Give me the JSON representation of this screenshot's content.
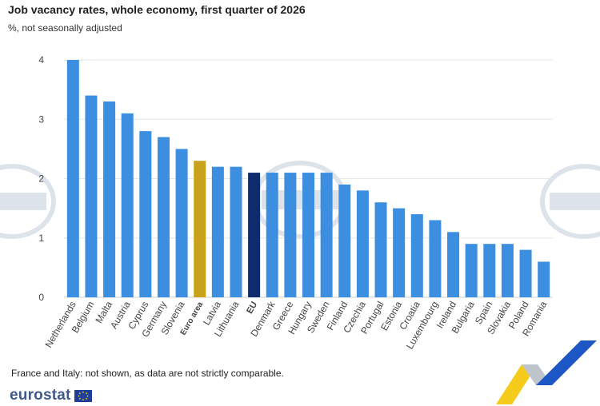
{
  "header": {
    "title": "Job vacancy rates, whole economy, first quarter of 2026",
    "subtitle": "%, not seasonally adjusted"
  },
  "footnote": "France and Italy: not shown, as data are not strictly comparable.",
  "logo": {
    "text": "eurostat"
  },
  "colors": {
    "default": "#3b8ee0",
    "euro_area": "#c9a11a",
    "eu": "#0e2b6e",
    "grid": "#e6e6e6",
    "axis_text": "#444444",
    "watermark": "#9fb2c8"
  },
  "chart_data": {
    "type": "bar",
    "title": "Job vacancy rates, whole economy, first quarter of 2026",
    "subtitle": "%, not seasonally adjusted",
    "categories": [
      "Netherlands",
      "Belgium",
      "Malta",
      "Austria",
      "Cyprus",
      "Germany",
      "Slovenia",
      "Euro area",
      "Latvia",
      "Lithuania",
      "EU",
      "Denmark",
      "Greece",
      "Hungary",
      "Sweden",
      "Finland",
      "Czechia",
      "Portugal",
      "Estonia",
      "Croatia",
      "Luxembourg",
      "Ireland",
      "Bulgaria",
      "Spain",
      "Slovakia",
      "Poland",
      "Romania"
    ],
    "values": [
      4.0,
      3.4,
      3.3,
      3.1,
      2.8,
      2.7,
      2.5,
      2.3,
      2.2,
      2.2,
      2.1,
      2.1,
      2.1,
      2.1,
      2.1,
      1.9,
      1.8,
      1.6,
      1.5,
      1.4,
      1.3,
      1.1,
      0.9,
      0.9,
      0.9,
      0.8,
      0.6
    ],
    "highlight": {
      "Euro area": "euro_area",
      "EU": "eu"
    },
    "yticks": [
      0,
      1,
      2,
      3,
      4
    ],
    "ylim": [
      0,
      4
    ],
    "grid": true
  }
}
